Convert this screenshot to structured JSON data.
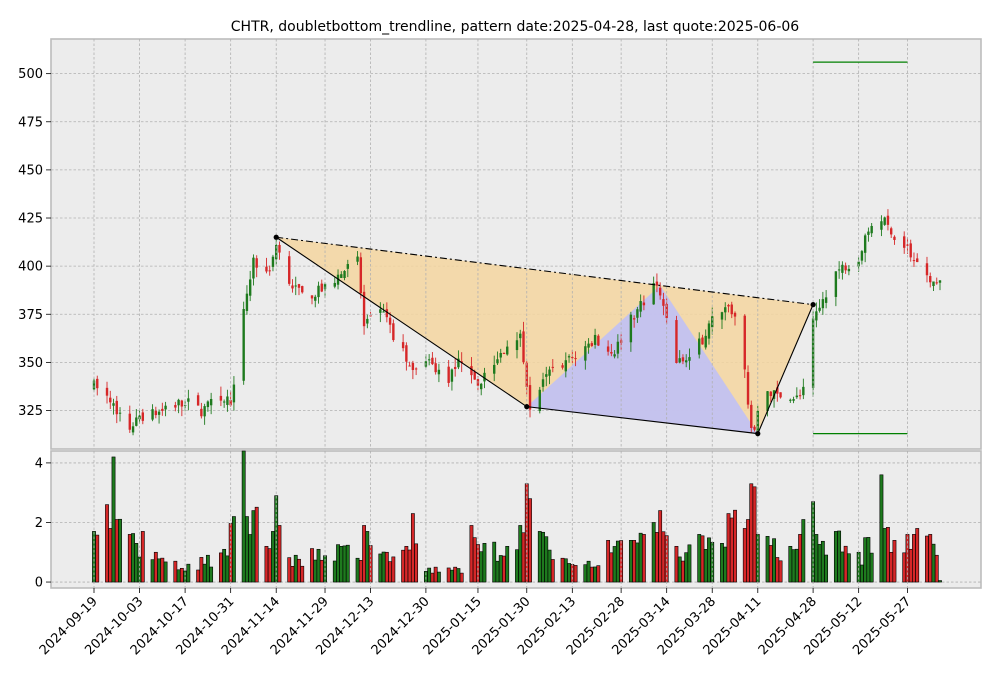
{
  "chart_data": {
    "type": "candlestick",
    "title": "CHTR, doubletbottom_trendline, pattern date:2025-04-28, last quote:2025-06-06",
    "xlabel": "",
    "ylabel": "",
    "x_ticks": [
      "2024-09-19",
      "2024-10-03",
      "2024-10-17",
      "2024-10-31",
      "2024-11-14",
      "2024-11-29",
      "2024-12-13",
      "2024-12-30",
      "2025-01-15",
      "2025-01-30",
      "2025-02-13",
      "2025-02-28",
      "2025-03-14",
      "2025-03-28",
      "2025-04-11",
      "2025-04-28",
      "2025-05-12",
      "2025-05-27"
    ],
    "price_ticks": [
      325,
      350,
      375,
      400,
      425,
      450,
      475,
      500
    ],
    "price_ylim": [
      305,
      518
    ],
    "volume_ticks": [
      0,
      2,
      4
    ],
    "volume_ylim": [
      -0.2,
      4.4
    ],
    "grid": true,
    "start_date": "2024-09-19",
    "end_date": "2025-06-06",
    "price_series": [
      [
        "2024-09-19",
        338
      ],
      [
        "2024-09-24",
        330
      ],
      [
        "2024-09-30",
        316
      ],
      [
        "2024-10-03",
        322
      ],
      [
        "2024-10-10",
        324
      ],
      [
        "2024-10-17",
        330
      ],
      [
        "2024-10-22",
        325
      ],
      [
        "2024-10-28",
        332
      ],
      [
        "2024-10-31",
        330
      ],
      [
        "2024-11-04",
        375
      ],
      [
        "2024-11-07",
        403
      ],
      [
        "2024-11-11",
        395
      ],
      [
        "2024-11-14",
        410
      ],
      [
        "2024-11-18",
        392
      ],
      [
        "2024-11-22",
        384
      ],
      [
        "2024-11-29",
        388
      ],
      [
        "2024-12-05",
        398
      ],
      [
        "2024-12-09",
        404
      ],
      [
        "2024-12-11",
        368
      ],
      [
        "2024-12-17",
        378
      ],
      [
        "2024-12-20",
        362
      ],
      [
        "2024-12-26",
        348
      ],
      [
        "2024-12-30",
        350
      ],
      [
        "2025-01-06",
        342
      ],
      [
        "2025-01-10",
        352
      ],
      [
        "2025-01-15",
        340
      ],
      [
        "2025-01-20",
        348
      ],
      [
        "2025-01-24",
        360
      ],
      [
        "2025-01-28",
        366
      ],
      [
        "2025-01-31",
        327
      ],
      [
        "2025-02-06",
        345
      ],
      [
        "2025-02-10",
        350
      ],
      [
        "2025-02-13",
        352
      ],
      [
        "2025-02-20",
        362
      ],
      [
        "2025-02-26",
        356
      ],
      [
        "2025-03-03",
        372
      ],
      [
        "2025-03-06",
        380
      ],
      [
        "2025-03-10",
        390
      ],
      [
        "2025-03-12",
        384
      ],
      [
        "2025-03-17",
        350
      ],
      [
        "2025-03-21",
        352
      ],
      [
        "2025-03-25",
        362
      ],
      [
        "2025-03-28",
        372
      ],
      [
        "2025-04-02",
        382
      ],
      [
        "2025-04-04",
        373
      ],
      [
        "2025-04-07",
        345
      ],
      [
        "2025-04-09",
        313
      ],
      [
        "2025-04-14",
        335
      ],
      [
        "2025-04-18",
        332
      ],
      [
        "2025-04-22",
        330
      ],
      [
        "2025-04-25",
        335
      ],
      [
        "2025-04-28",
        370
      ],
      [
        "2025-05-02",
        385
      ],
      [
        "2025-05-06",
        398
      ],
      [
        "2025-05-12",
        405
      ],
      [
        "2025-05-15",
        420
      ],
      [
        "2025-05-19",
        425
      ],
      [
        "2025-05-22",
        418
      ],
      [
        "2025-05-27",
        410
      ],
      [
        "2025-05-30",
        400
      ],
      [
        "2025-06-03",
        390
      ],
      [
        "2025-06-06",
        395
      ]
    ],
    "volume_series": [
      [
        "2024-09-19",
        1.7
      ],
      [
        "2024-09-23",
        2.6
      ],
      [
        "2024-09-24",
        1.8
      ],
      [
        "2024-09-25",
        4.2
      ],
      [
        "2024-09-26",
        2.1
      ],
      [
        "2024-09-30",
        1.6
      ],
      [
        "2024-10-02",
        1.3
      ],
      [
        "2024-10-04",
        1.7
      ],
      [
        "2024-10-08",
        1.0
      ],
      [
        "2024-10-14",
        0.7
      ],
      [
        "2024-10-18",
        0.6
      ],
      [
        "2024-10-24",
        0.9
      ],
      [
        "2024-10-29",
        1.1
      ],
      [
        "2024-11-01",
        2.2
      ],
      [
        "2024-11-04",
        4.4
      ],
      [
        "2024-11-05",
        2.2
      ],
      [
        "2024-11-07",
        2.4
      ],
      [
        "2024-11-11",
        1.2
      ],
      [
        "2024-11-13",
        1.7
      ],
      [
        "2024-11-14",
        2.9
      ],
      [
        "2024-11-15",
        1.9
      ],
      [
        "2024-11-20",
        0.9
      ],
      [
        "2024-11-27",
        1.1
      ],
      [
        "2024-12-04",
        1.2
      ],
      [
        "2024-12-09",
        0.8
      ],
      [
        "2024-12-11",
        1.9
      ],
      [
        "2024-12-12",
        1.7
      ],
      [
        "2024-12-18",
        1.0
      ],
      [
        "2024-12-24",
        1.2
      ],
      [
        "2024-12-26",
        2.3
      ],
      [
        "2025-01-02",
        0.5
      ],
      [
        "2025-01-08",
        0.5
      ],
      [
        "2025-01-13",
        1.9
      ],
      [
        "2025-01-17",
        1.3
      ],
      [
        "2025-01-24",
        1.2
      ],
      [
        "2025-01-28",
        1.9
      ],
      [
        "2025-01-30",
        3.3
      ],
      [
        "2025-01-31",
        2.8
      ],
      [
        "2025-02-03",
        1.7
      ],
      [
        "2025-02-10",
        0.8
      ],
      [
        "2025-02-18",
        0.7
      ],
      [
        "2025-02-24",
        1.4
      ],
      [
        "2025-03-03",
        1.4
      ],
      [
        "2025-03-07",
        1.6
      ],
      [
        "2025-03-10",
        2.0
      ],
      [
        "2025-03-12",
        2.4
      ],
      [
        "2025-03-17",
        1.2
      ],
      [
        "2025-03-24",
        1.6
      ],
      [
        "2025-03-31",
        1.3
      ],
      [
        "2025-04-02",
        2.3
      ],
      [
        "2025-04-07",
        1.8
      ],
      [
        "2025-04-08",
        2.1
      ],
      [
        "2025-04-09",
        3.3
      ],
      [
        "2025-04-11",
        1.6
      ],
      [
        "2025-04-21",
        1.2
      ],
      [
        "2025-04-24",
        1.6
      ],
      [
        "2025-04-25",
        2.1
      ],
      [
        "2025-04-28",
        2.7
      ],
      [
        "2025-04-29",
        1.6
      ],
      [
        "2025-05-05",
        1.7
      ],
      [
        "2025-05-12",
        1.0
      ],
      [
        "2025-05-15",
        1.5
      ],
      [
        "2025-05-19",
        3.6
      ],
      [
        "2025-05-20",
        1.8
      ],
      [
        "2025-05-23",
        1.4
      ],
      [
        "2025-05-27",
        1.6
      ],
      [
        "2025-05-30",
        1.8
      ],
      [
        "2025-06-03",
        1.6
      ],
      [
        "2025-06-05",
        0.9
      ],
      [
        "2025-06-06",
        0.05
      ]
    ],
    "pattern_points": [
      {
        "date": "2024-11-14",
        "price": 415
      },
      {
        "date": "2025-01-30",
        "price": 327
      },
      {
        "date": "2025-04-11",
        "price": 313
      },
      {
        "date": "2025-04-28",
        "price": 380
      }
    ],
    "resistance_point": {
      "date": "2025-03-12",
      "price": 390
    },
    "target_lines": [
      {
        "price": 506,
        "start": "2025-04-28",
        "end": "2025-05-27",
        "color": "#008000"
      },
      {
        "price": 313,
        "start": "2025-04-28",
        "end": "2025-05-27",
        "color": "#008000"
      }
    ],
    "colors": {
      "up": "#1e7a1e",
      "down": "#d62728",
      "pattern_fill": "#f5d6a0",
      "triangle_fill": "#c0c0f5"
    }
  }
}
